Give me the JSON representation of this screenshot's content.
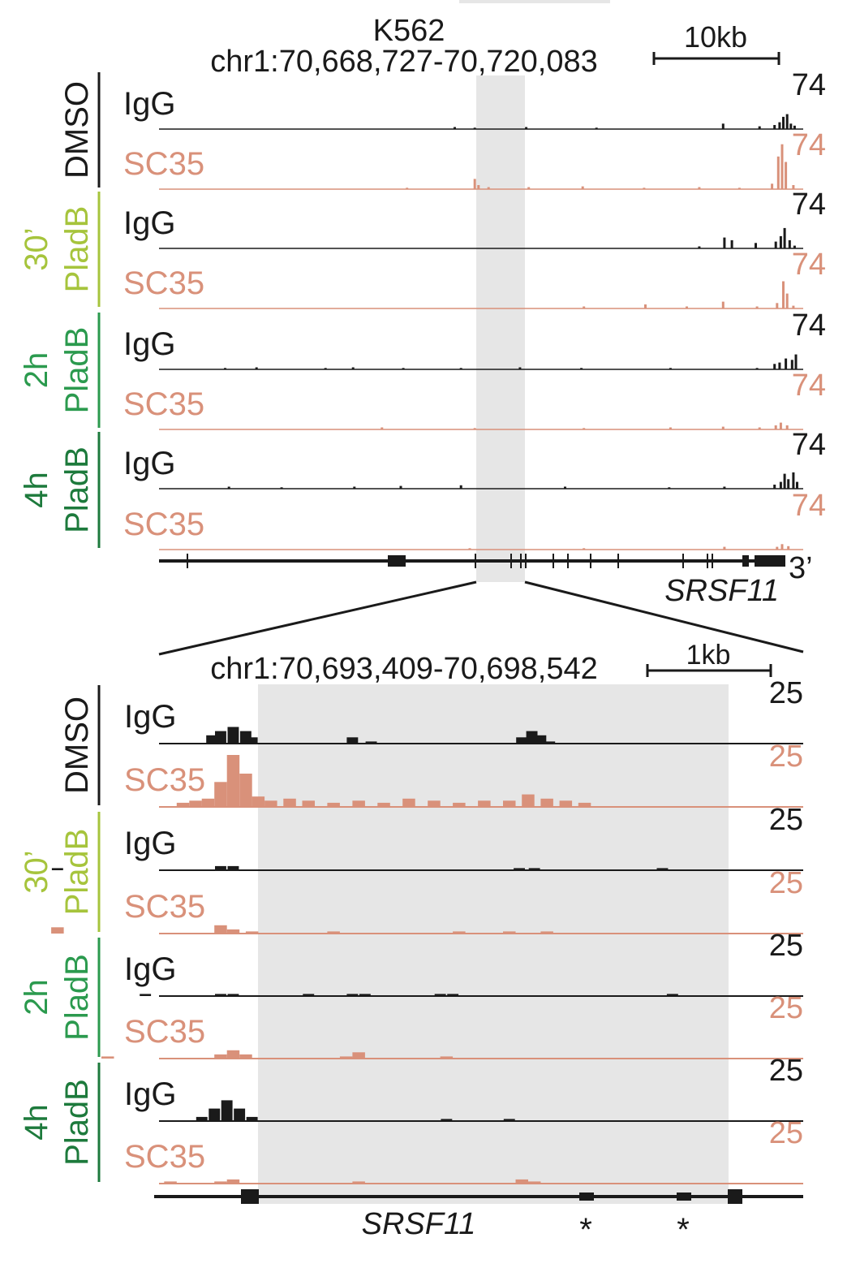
{
  "chart_data": [
    {
      "type": "area",
      "panel": "overview",
      "title": "K562",
      "region": "chr1:70,668,727-70,720,083",
      "scale_bar_label": "10kb",
      "x_range": [
        70668727,
        70720083
      ],
      "highlight_range": [
        70693409,
        70698542
      ],
      "y_max_label": "74",
      "ylim": [
        0,
        74
      ],
      "conditions": [
        {
          "label_line1": "DMSO",
          "label_line2": "",
          "color": "#1a1a1a"
        },
        {
          "label_line1": "PladB",
          "label_line2": "30’",
          "color": "#a6c43c"
        },
        {
          "label_line1": "PladB",
          "label_line2": "2h",
          "color": "#2b9a4e"
        },
        {
          "label_line1": "PladB",
          "label_line2": "4h",
          "color": "#1d7a3c"
        }
      ],
      "series": [
        {
          "condition": "DMSO",
          "name": "IgG",
          "color": "#1a1a1a",
          "x": [
            70692300,
            70693900,
            70698000,
            70703600,
            70713700,
            70716600,
            70717800,
            70718200,
            70718500,
            70718800,
            70719100,
            70719400
          ],
          "values": [
            3,
            2,
            3,
            2,
            8,
            4,
            6,
            10,
            18,
            22,
            8,
            5
          ]
        },
        {
          "condition": "DMSO",
          "name": "SC35",
          "color": "#d9917a",
          "x": [
            70688500,
            70693900,
            70694200,
            70695000,
            70698200,
            70702500,
            70707400,
            70711800,
            70715000,
            70717600,
            70718100,
            70718400,
            70718700,
            70719300
          ],
          "values": [
            2,
            15,
            6,
            3,
            3,
            4,
            2,
            3,
            2,
            8,
            48,
            66,
            40,
            6
          ]
        },
        {
          "condition": "PladB 30’",
          "name": "IgG",
          "color": "#1a1a1a",
          "x": [
            70711800,
            70713800,
            70714400,
            70716300,
            70717900,
            70718300,
            70718600,
            70719000,
            70719400
          ],
          "values": [
            3,
            16,
            12,
            8,
            10,
            18,
            30,
            12,
            4
          ]
        },
        {
          "condition": "PladB 30’",
          "name": "SC35",
          "color": "#d9917a",
          "x": [
            70702600,
            70707500,
            70710800,
            70713700,
            70716400,
            70718000,
            70718500,
            70718800,
            70719300
          ],
          "values": [
            3,
            6,
            3,
            10,
            3,
            8,
            40,
            22,
            4
          ]
        },
        {
          "condition": "PladB 2h",
          "name": "IgG",
          "color": "#1a1a1a",
          "x": [
            70674000,
            70676500,
            70682000,
            70684200,
            70688200,
            70692800,
            70697500,
            70702400,
            70709500,
            70716400,
            70717800,
            70718200,
            70718700,
            70719200,
            70719500
          ],
          "values": [
            2,
            3,
            2,
            3,
            2,
            2,
            3,
            2,
            2,
            2,
            8,
            10,
            16,
            14,
            22
          ]
        },
        {
          "condition": "PladB 2h",
          "name": "SC35",
          "color": "#d9917a",
          "x": [
            70686500,
            70693900,
            70702600,
            70709500,
            70713700,
            70716600,
            70717900,
            70718300,
            70718800
          ],
          "values": [
            3,
            2,
            2,
            3,
            4,
            3,
            6,
            10,
            6
          ]
        },
        {
          "condition": "PladB 4h",
          "name": "IgG",
          "color": "#1a1a1a",
          "x": [
            70674300,
            70678500,
            70684300,
            70688000,
            70692800,
            70701100,
            70709400,
            70713800,
            70717800,
            70718300,
            70718600,
            70718900,
            70719300,
            70719600
          ],
          "values": [
            3,
            2,
            3,
            4,
            5,
            3,
            2,
            3,
            6,
            10,
            22,
            14,
            24,
            10
          ]
        },
        {
          "condition": "PladB 4h",
          "name": "SC35",
          "color": "#d9917a",
          "x": [
            70693500,
            70702600,
            70713800,
            70718000,
            70718400,
            70718900
          ],
          "values": [
            2,
            2,
            4,
            4,
            8,
            5
          ]
        }
      ],
      "gene": {
        "name": "SRSF11",
        "end_label": "3’"
      }
    },
    {
      "type": "area",
      "panel": "zoom",
      "region": "chr1:70,693,409-70,698,542",
      "scale_bar_label": "1kb",
      "x_range": [
        70693409,
        70698542
      ],
      "y_max_label": "25",
      "ylim": [
        0,
        25
      ],
      "series": [
        {
          "condition": "DMSO",
          "name": "IgG",
          "color": "#1a1a1a",
          "x": [
            70693830,
            70693900,
            70694000,
            70694100,
            70694150,
            70694950,
            70695100,
            70696300,
            70696380,
            70696450,
            70696520
          ],
          "values": [
            4,
            6,
            8,
            6,
            3,
            3,
            1,
            3,
            6,
            4,
            1
          ],
          "bin": 90
        },
        {
          "condition": "DMSO",
          "name": "SC35",
          "color": "#d9917a",
          "x": [
            70693600,
            70693700,
            70693800,
            70693900,
            70694000,
            70694100,
            70694200,
            70694300,
            70694450,
            70694600,
            70694800,
            70695000,
            70695200,
            70695400,
            70695600,
            70695800,
            70696000,
            70696200,
            70696350,
            70696500,
            70696650,
            70696800
          ],
          "values": [
            2,
            3,
            4,
            12,
            25,
            16,
            5,
            3,
            4,
            3,
            2,
            3,
            2,
            4,
            3,
            2,
            3,
            3,
            6,
            4,
            3,
            2
          ],
          "bin": 100
        },
        {
          "condition": "PladB 30’",
          "name": "IgG",
          "color": "#1a1a1a",
          "x": [
            70692600,
            70693900,
            70694000,
            70696280,
            70696400,
            70697420
          ],
          "values": [
            1,
            2,
            2,
            1,
            1,
            1
          ],
          "bin": 90
        },
        {
          "condition": "PladB 30’",
          "name": "SC35",
          "color": "#d9917a",
          "x": [
            70692600,
            70693900,
            70694000,
            70694150,
            70694800,
            70695800,
            70696200,
            70696500
          ],
          "values": [
            3,
            4,
            2,
            1,
            1,
            1,
            1,
            1
          ],
          "bin": 100
        },
        {
          "condition": "PladB 2h",
          "name": "IgG",
          "color": "#1a1a1a",
          "x": [
            70693300,
            70693900,
            70694000,
            70694600,
            70694950,
            70695050,
            70695650,
            70695750,
            70697500
          ],
          "values": [
            1,
            1,
            1,
            1,
            1,
            1,
            1,
            1,
            1
          ],
          "bin": 90
        },
        {
          "condition": "PladB 2h",
          "name": "SC35",
          "color": "#d9917a",
          "x": [
            70693000,
            70693900,
            70694000,
            70694100,
            70694900,
            70695000,
            70695700
          ],
          "values": [
            1,
            2,
            4,
            2,
            1,
            3,
            1
          ],
          "bin": 100
        },
        {
          "condition": "PladB 4h",
          "name": "IgG",
          "color": "#1a1a1a",
          "x": [
            70693750,
            70693850,
            70693950,
            70694050,
            70694150,
            70695700,
            70696200
          ],
          "values": [
            2,
            6,
            10,
            6,
            2,
            1,
            1
          ],
          "bin": 90
        },
        {
          "condition": "PladB 4h",
          "name": "SC35",
          "color": "#d9917a",
          "x": [
            70693500,
            70693900,
            70694000,
            70695000,
            70696300,
            70696400
          ],
          "values": [
            1,
            1,
            2,
            1,
            2,
            1
          ],
          "bin": 100
        }
      ],
      "gene": {
        "name": "SRSF11",
        "marker": "*",
        "exons_marked": 2
      }
    }
  ],
  "labels": {
    "igg": "IgG",
    "sc35": "SC35"
  }
}
